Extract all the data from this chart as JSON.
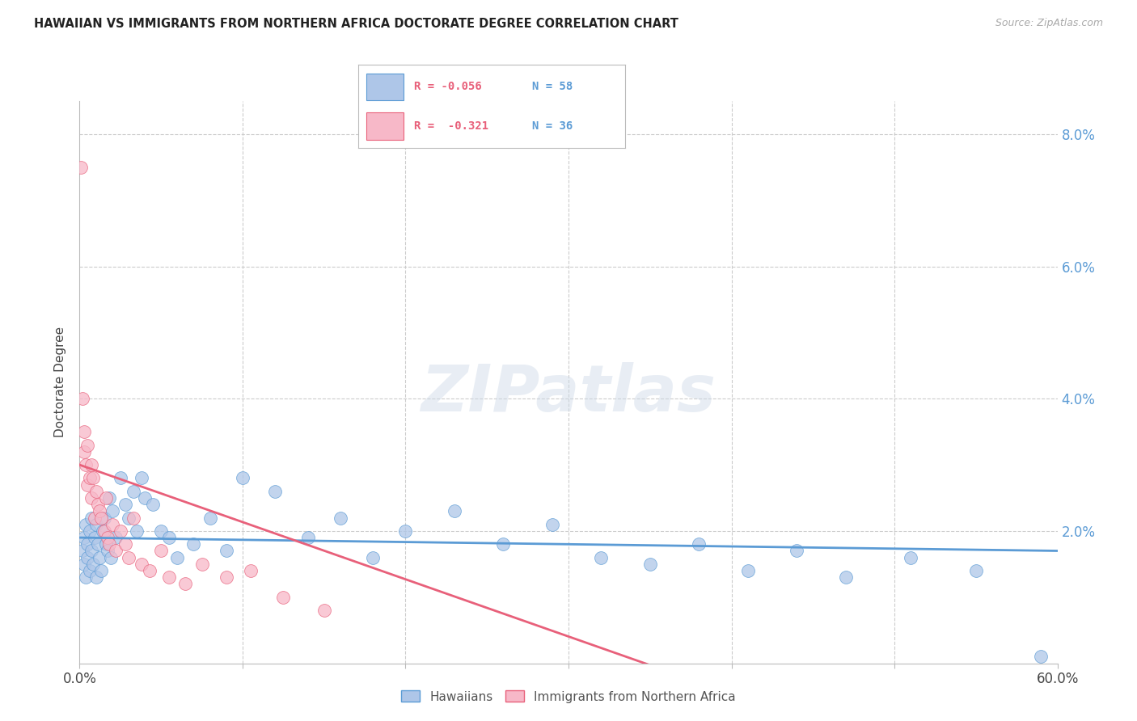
{
  "title": "HAWAIIAN VS IMMIGRANTS FROM NORTHERN AFRICA DOCTORATE DEGREE CORRELATION CHART",
  "source": "Source: ZipAtlas.com",
  "ylabel": "Doctorate Degree",
  "xlim": [
    0,
    0.6
  ],
  "ylim": [
    0,
    0.085
  ],
  "blue_color": "#aec6e8",
  "pink_color": "#f7b8c8",
  "blue_line_color": "#5b9bd5",
  "pink_line_color": "#e8607a",
  "watermark": "ZIPatlas",
  "legend1": "Hawaiians",
  "legend2": "Immigrants from Northern Africa",
  "blue_R": "R = -0.056",
  "blue_N": "N = 58",
  "pink_R": "R =  -0.321",
  "pink_N": "N = 36",
  "hawaiians_x": [
    0.002,
    0.003,
    0.003,
    0.004,
    0.004,
    0.005,
    0.005,
    0.006,
    0.006,
    0.007,
    0.007,
    0.008,
    0.009,
    0.01,
    0.01,
    0.011,
    0.012,
    0.013,
    0.014,
    0.015,
    0.016,
    0.017,
    0.018,
    0.019,
    0.02,
    0.022,
    0.025,
    0.028,
    0.03,
    0.033,
    0.035,
    0.038,
    0.04,
    0.045,
    0.05,
    0.055,
    0.06,
    0.07,
    0.08,
    0.09,
    0.1,
    0.12,
    0.14,
    0.16,
    0.18,
    0.2,
    0.23,
    0.26,
    0.29,
    0.32,
    0.35,
    0.38,
    0.41,
    0.44,
    0.47,
    0.51,
    0.55,
    0.59
  ],
  "hawaiians_y": [
    0.017,
    0.019,
    0.015,
    0.021,
    0.013,
    0.018,
    0.016,
    0.02,
    0.014,
    0.017,
    0.022,
    0.015,
    0.019,
    0.013,
    0.021,
    0.018,
    0.016,
    0.014,
    0.02,
    0.022,
    0.018,
    0.017,
    0.025,
    0.016,
    0.023,
    0.019,
    0.028,
    0.024,
    0.022,
    0.026,
    0.02,
    0.028,
    0.025,
    0.024,
    0.02,
    0.019,
    0.016,
    0.018,
    0.022,
    0.017,
    0.028,
    0.026,
    0.019,
    0.022,
    0.016,
    0.02,
    0.023,
    0.018,
    0.021,
    0.016,
    0.015,
    0.018,
    0.014,
    0.017,
    0.013,
    0.016,
    0.014,
    0.001
  ],
  "immigrants_x": [
    0.001,
    0.002,
    0.003,
    0.003,
    0.004,
    0.005,
    0.005,
    0.006,
    0.007,
    0.007,
    0.008,
    0.009,
    0.01,
    0.011,
    0.012,
    0.013,
    0.015,
    0.016,
    0.017,
    0.018,
    0.02,
    0.022,
    0.025,
    0.028,
    0.03,
    0.033,
    0.038,
    0.043,
    0.05,
    0.055,
    0.065,
    0.075,
    0.09,
    0.105,
    0.125,
    0.15
  ],
  "immigrants_y": [
    0.075,
    0.04,
    0.035,
    0.032,
    0.03,
    0.033,
    0.027,
    0.028,
    0.03,
    0.025,
    0.028,
    0.022,
    0.026,
    0.024,
    0.023,
    0.022,
    0.02,
    0.025,
    0.019,
    0.018,
    0.021,
    0.017,
    0.02,
    0.018,
    0.016,
    0.022,
    0.015,
    0.014,
    0.017,
    0.013,
    0.012,
    0.015,
    0.013,
    0.014,
    0.01,
    0.008
  ]
}
